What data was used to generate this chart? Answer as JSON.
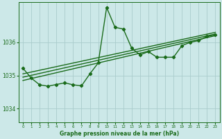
{
  "bg_color": "#cce8e8",
  "grid_color": "#aacccc",
  "line_color": "#1a6b1a",
  "title": "Graphe pression niveau de la mer (hPa)",
  "xlim": [
    -0.5,
    23.5
  ],
  "ylim": [
    1033.6,
    1037.2
  ],
  "yticks": [
    1034,
    1035,
    1036
  ],
  "xticks": [
    0,
    1,
    2,
    3,
    4,
    5,
    6,
    7,
    8,
    9,
    10,
    11,
    12,
    13,
    14,
    15,
    16,
    17,
    18,
    19,
    20,
    21,
    22,
    23
  ],
  "series": [
    {
      "x": [
        0,
        1,
        2,
        3,
        4,
        5,
        6,
        7,
        8,
        9,
        10,
        11,
        12,
        13,
        14,
        15,
        16,
        17,
        18,
        19,
        20,
        21,
        22,
        23
      ],
      "y": [
        1035.22,
        1034.92,
        1034.72,
        1034.68,
        1034.73,
        1034.78,
        1034.72,
        1034.69,
        1035.05,
        1035.38,
        1037.05,
        1036.45,
        1036.4,
        1035.82,
        1035.62,
        1035.72,
        1035.55,
        1035.55,
        1035.55,
        1035.9,
        1036.0,
        1036.05,
        1036.18,
        1036.22
      ],
      "marker": true,
      "linewidth": 1.0
    },
    {
      "x": [
        0,
        23
      ],
      "y": [
        1034.85,
        1036.2
      ],
      "marker": false,
      "linewidth": 1.0
    },
    {
      "x": [
        0,
        23
      ],
      "y": [
        1034.95,
        1036.25
      ],
      "marker": false,
      "linewidth": 1.0
    },
    {
      "x": [
        0,
        23
      ],
      "y": [
        1035.05,
        1036.3
      ],
      "marker": false,
      "linewidth": 1.0
    }
  ]
}
